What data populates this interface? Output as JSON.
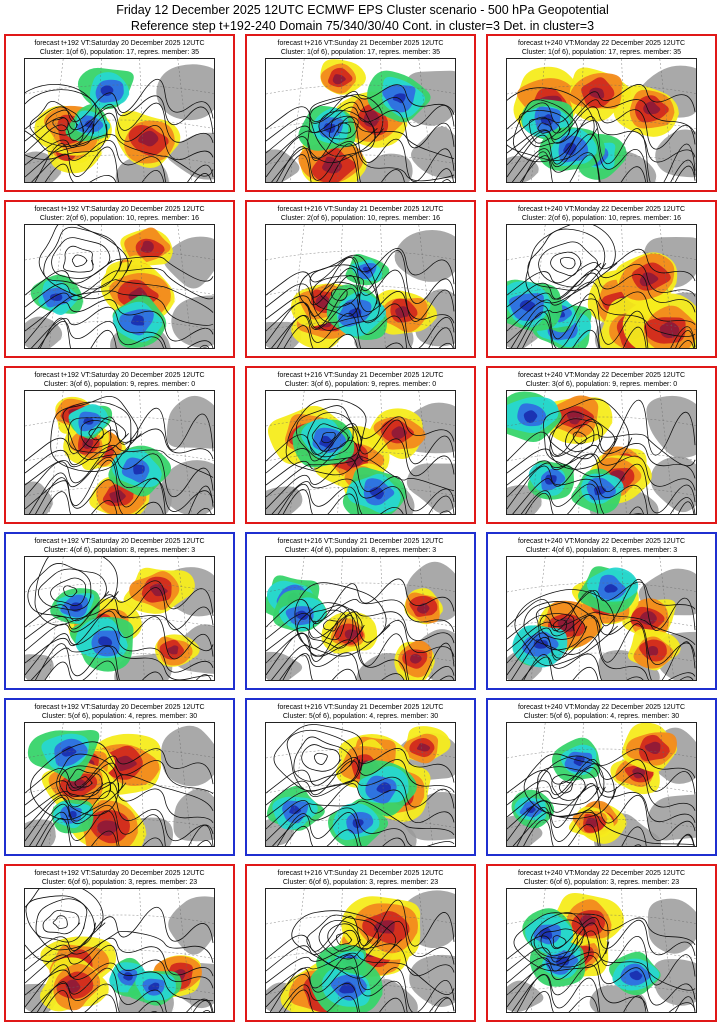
{
  "header": {
    "line1": "Friday 12 December 2025 12UTC ECMWF EPS Cluster scenario - 500 hPa Geopotential",
    "line2": "Reference step t+192-240 Domain 75/340/30/40 Cont. in cluster=3 Det. in cluster=3"
  },
  "colors": {
    "red_frame": "#e01818",
    "blue_frame": "#1f2fd0",
    "warm_anomaly": "#d12a1e",
    "cold_anomaly": "#2f6fe0",
    "land": "#9a9a9a"
  },
  "chart_data": {
    "type": "heatmap",
    "title": "ECMWF EPS Cluster scenario - 500 hPa Geopotential",
    "steps": [
      "t+192",
      "t+216",
      "t+240"
    ],
    "clusters": [
      {
        "frame": "red",
        "panels": [
          {
            "line1": "forecast t+192 VT:Saturday 20 December 2025 12UTC",
            "line2": "Cluster: 1(of 6), population: 17, repres. member: 35"
          },
          {
            "line1": "forecast t+216 VT:Sunday 21 December 2025 12UTC",
            "line2": "Cluster: 1(of 6), population: 17, repres. member: 35"
          },
          {
            "line1": "forecast t+240 VT:Monday 22 December 2025 12UTC",
            "line2": "Cluster: 1(of 6), population: 17, repres. member: 35"
          }
        ]
      },
      {
        "frame": "red",
        "panels": [
          {
            "line1": "forecast t+192 VT:Saturday 20 December 2025 12UTC",
            "line2": "Cluster: 2(of 6), population: 10, repres. member: 16"
          },
          {
            "line1": "forecast t+216 VT:Sunday 21 December 2025 12UTC",
            "line2": "Cluster: 2(of 6), population: 10, repres. member: 16"
          },
          {
            "line1": "forecast t+240 VT:Monday 22 December 2025 12UTC",
            "line2": "Cluster: 2(of 6), population: 10, repres. member: 16"
          }
        ]
      },
      {
        "frame": "red",
        "panels": [
          {
            "line1": "forecast t+192 VT:Saturday 20 December 2025 12UTC",
            "line2": "Cluster: 3(of 6), population: 9, repres. member: 0"
          },
          {
            "line1": "forecast t+216 VT:Sunday 21 December 2025 12UTC",
            "line2": "Cluster: 3(of 6), population: 9, repres. member: 0"
          },
          {
            "line1": "forecast t+240 VT:Monday 22 December 2025 12UTC",
            "line2": "Cluster: 3(of 6), population: 9, repres. member: 0"
          }
        ]
      },
      {
        "frame": "blue",
        "panels": [
          {
            "line1": "forecast t+192 VT:Saturday 20 December 2025 12UTC",
            "line2": "Cluster: 4(of 6), population: 8, repres. member: 3"
          },
          {
            "line1": "forecast t+216 VT:Sunday 21 December 2025 12UTC",
            "line2": "Cluster: 4(of 6), population: 8, repres. member: 3"
          },
          {
            "line1": "forecast t+240 VT:Monday 22 December 2025 12UTC",
            "line2": "Cluster: 4(of 6), population: 8, repres. member: 3"
          }
        ]
      },
      {
        "frame": "blue",
        "panels": [
          {
            "line1": "forecast t+192 VT:Saturday 20 December 2025 12UTC",
            "line2": "Cluster: 5(of 6), population: 4, repres. member: 30"
          },
          {
            "line1": "forecast t+216 VT:Sunday 21 December 2025 12UTC",
            "line2": "Cluster: 5(of 6), population: 4, repres. member: 30"
          },
          {
            "line1": "forecast t+240 VT:Monday 22 December 2025 12UTC",
            "line2": "Cluster: 5(of 6), population: 4, repres. member: 30"
          }
        ]
      },
      {
        "frame": "red",
        "panels": [
          {
            "line1": "forecast t+192 VT:Saturday 20 December 2025 12UTC",
            "line2": "Cluster: 6(of 6), population: 3, repres. member: 23"
          },
          {
            "line1": "forecast t+216 VT:Sunday 21 December 2025 12UTC",
            "line2": "Cluster: 6(of 6), population: 3, repres. member: 23"
          },
          {
            "line1": "forecast t+240 VT:Monday 22 December 2025 12UTC",
            "line2": "Cluster: 6(of 6), population: 3, repres. member: 23"
          }
        ]
      }
    ]
  }
}
